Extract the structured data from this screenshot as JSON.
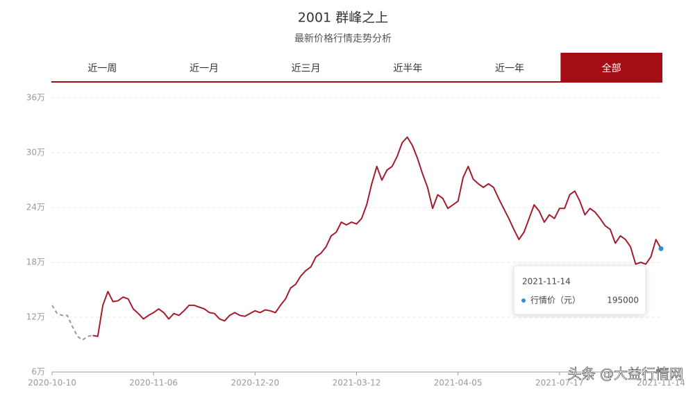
{
  "chart_data": {
    "type": "line",
    "title": "2001 群峰之上",
    "subtitle": "最新价格行情走势分析",
    "tabs": [
      "近一周",
      "近一月",
      "近三月",
      "近半年",
      "近一年",
      "全部"
    ],
    "active_tab": 5,
    "categories": [
      "2020-10-10",
      null,
      null,
      null,
      null,
      null,
      null,
      null,
      null,
      null,
      null,
      null,
      null,
      null,
      null,
      null,
      null,
      null,
      null,
      null,
      "2020-11-06",
      null,
      null,
      null,
      null,
      null,
      null,
      null,
      null,
      null,
      null,
      null,
      null,
      null,
      null,
      null,
      null,
      null,
      null,
      null,
      "2020-12-20",
      null,
      null,
      null,
      null,
      null,
      null,
      null,
      null,
      null,
      null,
      null,
      null,
      null,
      null,
      null,
      null,
      null,
      null,
      null,
      "2021-03-12",
      null,
      null,
      null,
      null,
      null,
      null,
      null,
      null,
      null,
      null,
      null,
      null,
      null,
      null,
      null,
      null,
      null,
      null,
      null,
      "2021-04-05",
      null,
      null,
      null,
      null,
      null,
      null,
      null,
      null,
      null,
      null,
      null,
      null,
      null,
      null,
      null,
      null,
      null,
      null,
      null,
      "2021-07-17",
      null,
      null,
      null,
      null,
      null,
      null,
      null,
      null,
      null,
      null,
      null,
      null,
      null,
      null,
      null,
      null,
      null,
      null,
      null,
      "2021-11-14"
    ],
    "series": [
      {
        "name": "行情价（元）",
        "color": "#a31b2c",
        "values": [
          null,
          null,
          null,
          null,
          null,
          null,
          null,
          null,
          100000,
          99000,
          133000,
          148000,
          137000,
          138000,
          142000,
          140000,
          129000,
          124000,
          118000,
          122000,
          125000,
          129000,
          125000,
          118000,
          124000,
          122000,
          127000,
          133000,
          133000,
          131000,
          129000,
          125000,
          124000,
          118000,
          116000,
          122000,
          125000,
          122000,
          121000,
          124000,
          127000,
          125000,
          128000,
          127000,
          125000,
          133000,
          140000,
          152000,
          156000,
          165000,
          171000,
          175000,
          186000,
          190000,
          197000,
          209000,
          213000,
          224000,
          221000,
          224000,
          222000,
          228000,
          243000,
          266000,
          285000,
          270000,
          281000,
          285000,
          296000,
          311000,
          317000,
          308000,
          294000,
          277000,
          262000,
          239000,
          254000,
          250000,
          239000,
          243000,
          247000,
          273000,
          285000,
          271000,
          266000,
          262000,
          266000,
          262000,
          250000,
          239000,
          228000,
          216000,
          205000,
          213000,
          228000,
          243000,
          236000,
          224000,
          232000,
          228000,
          239000,
          239000,
          254000,
          258000,
          247000,
          232000,
          239000,
          235000,
          228000,
          220000,
          216000,
          201000,
          209000,
          205000,
          197000,
          178000,
          180000,
          178000,
          186000,
          205000,
          195000
        ]
      },
      {
        "color": "#999999",
        "dashed": true,
        "values": [
          133000,
          124000,
          122000,
          122000,
          110000,
          99000,
          95000,
          99000,
          100000,
          null,
          null,
          null,
          null,
          null,
          null,
          null,
          null,
          null,
          null,
          null,
          null,
          null,
          null,
          null,
          null,
          null,
          null,
          null,
          null,
          null,
          null,
          null,
          null,
          null,
          null,
          null,
          null,
          null,
          null,
          null,
          null,
          null,
          null,
          null,
          null,
          null,
          null,
          null,
          null,
          null,
          null,
          null,
          null,
          null,
          null,
          null,
          null,
          null,
          null,
          null,
          null,
          null,
          null,
          null,
          null,
          null,
          null,
          null,
          null,
          null,
          null,
          null,
          null,
          null,
          null,
          null,
          null,
          null,
          null,
          null,
          null,
          null,
          null,
          null,
          null,
          null,
          null,
          null,
          null,
          null,
          null,
          null,
          null,
          null,
          null,
          null,
          null,
          null,
          null,
          null,
          null,
          null,
          null,
          null,
          null,
          null,
          null,
          null,
          null,
          null,
          null,
          null,
          null,
          null,
          null,
          null,
          null,
          null,
          null,
          null,
          null
        ]
      }
    ],
    "ylim": [
      60000,
      360000
    ],
    "yticks": [
      {
        "value": 60000,
        "label": "6万"
      },
      {
        "value": 120000,
        "label": "12万"
      },
      {
        "value": 180000,
        "label": "18万"
      },
      {
        "value": 240000,
        "label": "24万"
      },
      {
        "value": 300000,
        "label": "30万"
      },
      {
        "value": 360000,
        "label": "36万"
      }
    ],
    "grid": true,
    "watermark": "头条 @大益行情网"
  }
}
